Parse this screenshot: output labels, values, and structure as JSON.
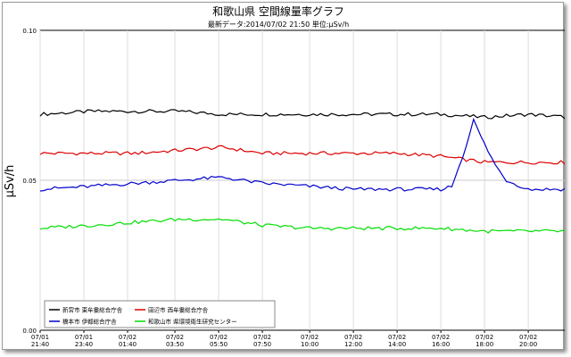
{
  "chart_data": {
    "type": "line",
    "title": "和歌山県 空間線量率グラフ",
    "subtitle": "最新データ:2014/07/02 21:50 単位:μSv/h",
    "ylabel": "μSv/h",
    "xlabel": "",
    "ylim": [
      0.0,
      0.1
    ],
    "yticks": [
      "0.00",
      "0.05",
      "0.10"
    ],
    "ytick_values": [
      0.0,
      0.05,
      0.1
    ],
    "grid": true,
    "legend_position": "bottom-left",
    "x_start": "2014-07-01 21:40",
    "x_end": "2014-07-02 21:50",
    "x_ticks": [
      {
        "date": "07/01",
        "time": "21:40"
      },
      {
        "date": "07/01",
        "time": "23:40"
      },
      {
        "date": "07/02",
        "time": "01:40"
      },
      {
        "date": "07/02",
        "time": "03:50"
      },
      {
        "date": "07/02",
        "time": "05:50"
      },
      {
        "date": "07/02",
        "time": "07:50"
      },
      {
        "date": "07/02",
        "time": "10:00"
      },
      {
        "date": "07/02",
        "time": "12:00"
      },
      {
        "date": "07/02",
        "time": "14:00"
      },
      {
        "date": "07/02",
        "time": "16:00"
      },
      {
        "date": "07/02",
        "time": "18:00"
      },
      {
        "date": "07/02",
        "time": "20:00"
      }
    ],
    "series": [
      {
        "name": "新宮市 東牟婁総合庁舎",
        "color": "#000000",
        "x": [
          "07/01 21:40",
          "07/02 00:00",
          "07/02 02:00",
          "07/02 04:00",
          "07/02 06:00",
          "07/02 08:00",
          "07/02 10:00",
          "07/02 12:00",
          "07/02 14:00",
          "07/02 16:00",
          "07/02 18:00",
          "07/02 20:00",
          "07/02 21:50"
        ],
        "values": [
          0.072,
          0.073,
          0.073,
          0.073,
          0.072,
          0.072,
          0.072,
          0.072,
          0.072,
          0.072,
          0.071,
          0.072,
          0.071
        ]
      },
      {
        "name": "田辺市 西牟婁総合庁舎",
        "color": "#dd0000",
        "x": [
          "07/01 21:40",
          "07/02 00:00",
          "07/02 02:00",
          "07/02 04:00",
          "07/02 06:00",
          "07/02 07:50",
          "07/02 10:00",
          "07/02 12:00",
          "07/02 14:00",
          "07/02 16:00",
          "07/02 18:00",
          "07/02 20:00",
          "07/02 21:50"
        ],
        "values": [
          0.059,
          0.059,
          0.059,
          0.06,
          0.061,
          0.059,
          0.059,
          0.059,
          0.059,
          0.058,
          0.056,
          0.056,
          0.056
        ]
      },
      {
        "name": "橋本市 伊都総合庁舎",
        "color": "#0000cc",
        "x": [
          "07/01 21:40",
          "07/02 00:00",
          "07/02 02:00",
          "07/02 04:00",
          "07/02 06:00",
          "07/02 07:50",
          "07/02 10:00",
          "07/02 12:00",
          "07/02 14:00",
          "07/02 16:00",
          "07/02 16:30",
          "07/02 17:00",
          "07/02 17:30",
          "07/02 18:00",
          "07/02 18:30",
          "07/02 19:00",
          "07/02 20:00",
          "07/02 21:50"
        ],
        "values": [
          0.047,
          0.048,
          0.049,
          0.05,
          0.051,
          0.049,
          0.048,
          0.047,
          0.047,
          0.047,
          0.048,
          0.058,
          0.07,
          0.062,
          0.055,
          0.05,
          0.047,
          0.047
        ]
      },
      {
        "name": "和歌山市 県環境衛生研究センター",
        "color": "#00dd00",
        "x": [
          "07/01 21:40",
          "07/02 00:00",
          "07/02 02:00",
          "07/02 04:00",
          "07/02 06:00",
          "07/02 07:50",
          "07/02 10:00",
          "07/02 12:00",
          "07/02 14:00",
          "07/02 16:00",
          "07/02 18:00",
          "07/02 20:00",
          "07/02 21:50"
        ],
        "values": [
          0.034,
          0.035,
          0.036,
          0.037,
          0.037,
          0.035,
          0.034,
          0.034,
          0.034,
          0.034,
          0.033,
          0.033,
          0.033
        ]
      }
    ]
  }
}
